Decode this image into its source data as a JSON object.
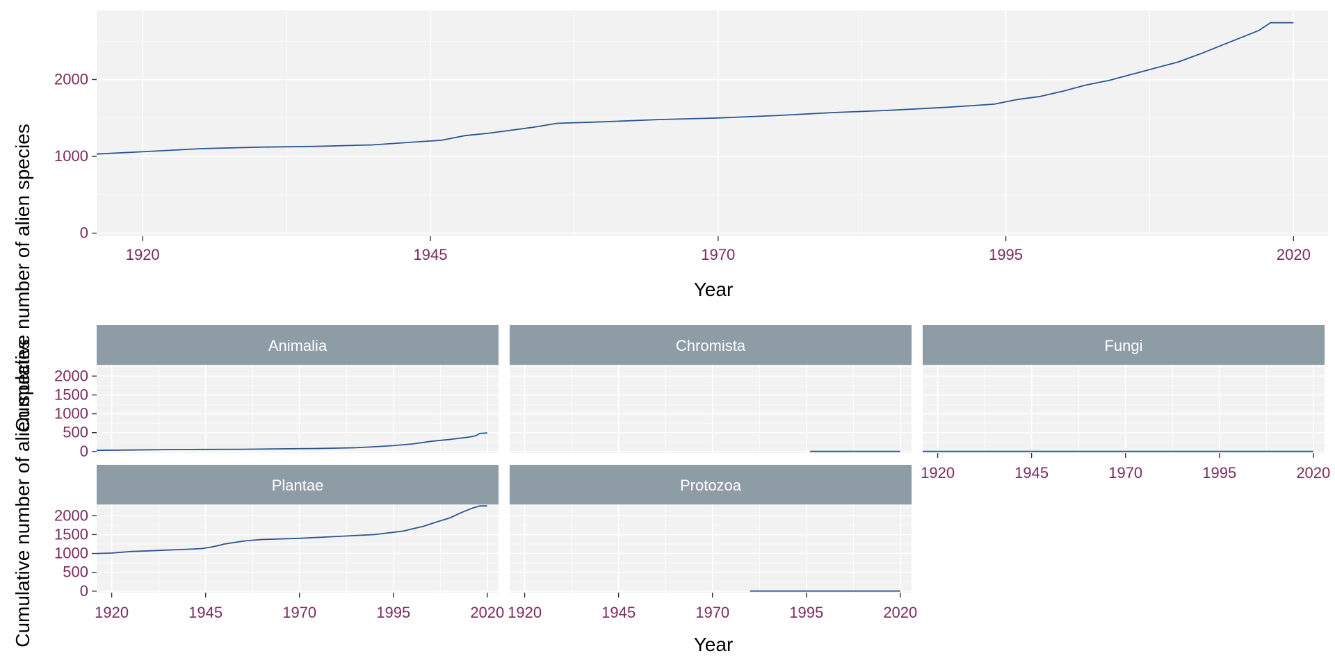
{
  "colors": {
    "panel_bg": "#f2f2f2",
    "grid": "#ffffff",
    "line": "#2c5590",
    "tick_label": "#7a2a5c",
    "strip_bg": "#8e9ca6",
    "strip_text": "#ffffff"
  },
  "chart_data": [
    {
      "type": "line",
      "title": "",
      "xlabel": "Year",
      "ylabel": "Cumulative number of alien species",
      "xlim": [
        1916,
        2023
      ],
      "ylim": [
        -40,
        2900
      ],
      "x_ticks": [
        1920,
        1945,
        1970,
        1995,
        2020
      ],
      "y_ticks": [
        0,
        1000,
        2000
      ],
      "grid": true,
      "series": [
        {
          "x": [
            1916,
            1920,
            1925,
            1930,
            1935,
            1940,
            1944,
            1946,
            1948,
            1950,
            1954,
            1956,
            1960,
            1965,
            1970,
            1975,
            1980,
            1985,
            1990,
            1994,
            1996,
            1998,
            2000,
            2002,
            2004,
            2006,
            2008,
            2010,
            2012,
            2014,
            2016,
            2017,
            2018,
            2020
          ],
          "y": [
            1030,
            1060,
            1100,
            1120,
            1130,
            1150,
            1190,
            1210,
            1270,
            1300,
            1380,
            1430,
            1450,
            1480,
            1500,
            1530,
            1570,
            1600,
            1640,
            1680,
            1740,
            1780,
            1850,
            1930,
            1990,
            2070,
            2150,
            2230,
            2340,
            2460,
            2580,
            2640,
            2740,
            2740
          ]
        }
      ]
    },
    {
      "type": "line",
      "xlabel": "Year",
      "ylabel": "Cumulative number of alien species",
      "xlim": [
        1916,
        2023
      ],
      "x_ticks": [
        1920,
        1945,
        1970,
        1995,
        2020
      ],
      "y_ticks": [
        0,
        500,
        1000,
        1500,
        2000
      ],
      "facets": [
        {
          "name": "Animalia",
          "ylim": [
            -40,
            2300
          ],
          "x": [
            1916,
            1925,
            1935,
            1945,
            1955,
            1965,
            1975,
            1985,
            1990,
            1995,
            2000,
            2005,
            2010,
            2015,
            2017,
            2018,
            2020
          ],
          "y": [
            30,
            40,
            50,
            55,
            60,
            70,
            80,
            100,
            125,
            155,
            200,
            270,
            320,
            380,
            420,
            480,
            490
          ]
        },
        {
          "name": "Chromista",
          "ylim": [
            -40,
            2300
          ],
          "x": [
            1996,
            2020
          ],
          "y": [
            2,
            2
          ]
        },
        {
          "name": "Fungi",
          "ylim": [
            -40,
            2300
          ],
          "x": [
            1916,
            2020
          ],
          "y": [
            3,
            3
          ]
        },
        {
          "name": "Plantae",
          "ylim": [
            -40,
            2300
          ],
          "x": [
            1916,
            1920,
            1925,
            1930,
            1935,
            1940,
            1944,
            1946,
            1948,
            1950,
            1954,
            1956,
            1960,
            1970,
            1980,
            1990,
            1995,
            1998,
            2000,
            2003,
            2006,
            2010,
            2013,
            2016,
            2018,
            2020
          ],
          "y": [
            1000,
            1010,
            1050,
            1070,
            1090,
            1110,
            1130,
            1160,
            1200,
            1250,
            1310,
            1340,
            1370,
            1400,
            1450,
            1500,
            1560,
            1600,
            1650,
            1720,
            1820,
            1940,
            2080,
            2200,
            2260,
            2260
          ]
        },
        {
          "name": "Protozoa",
          "ylim": [
            -40,
            2300
          ],
          "x": [
            1980,
            2020
          ],
          "y": [
            2,
            2
          ]
        }
      ]
    }
  ]
}
